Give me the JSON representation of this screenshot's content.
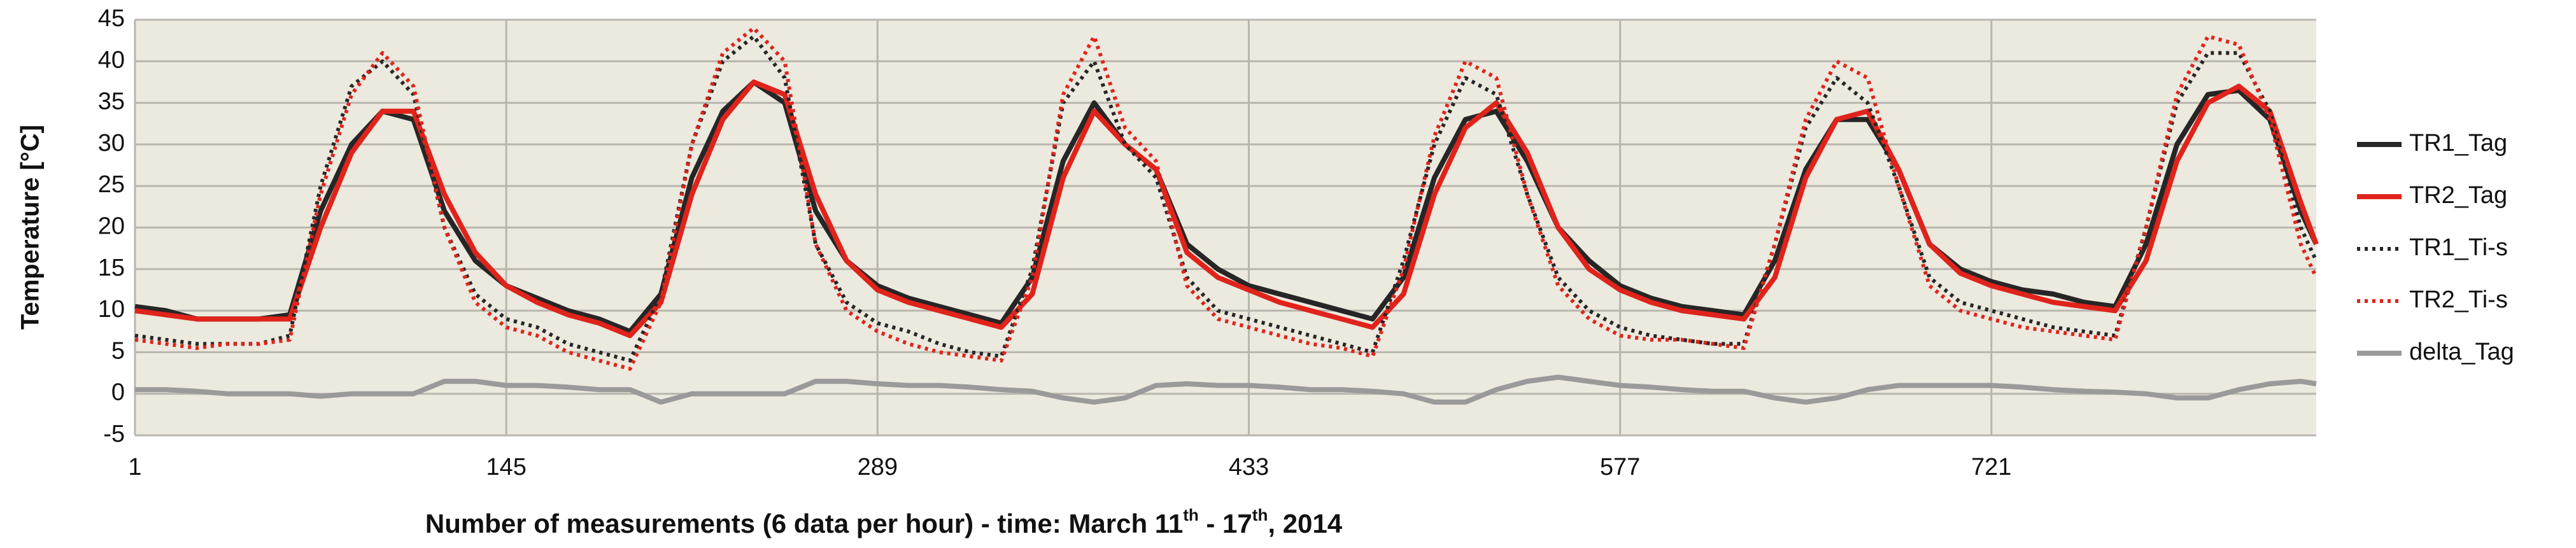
{
  "chart_data": {
    "type": "line",
    "ylabel": "Temperature   [°C]",
    "xlabel": [
      {
        "text": "Number of measurements (6 data per hour)  -  time: March 11"
      },
      {
        "text": "th",
        "sup": true
      },
      {
        "text": " - 17"
      },
      {
        "text": "th",
        "sup": true
      },
      {
        "text": ", 2014"
      }
    ],
    "xlim": [
      1,
      847
    ],
    "xticks": [
      1,
      145,
      289,
      433,
      577,
      721
    ],
    "ylim": [
      -5,
      45
    ],
    "yticks": [
      -5,
      0,
      5,
      10,
      15,
      20,
      25,
      30,
      35,
      40,
      45
    ],
    "grid": true,
    "legend": "right",
    "x": [
      1,
      13,
      25,
      37,
      49,
      61,
      73,
      85,
      97,
      109,
      121,
      133,
      145,
      157,
      169,
      181,
      193,
      205,
      217,
      229,
      241,
      253,
      265,
      277,
      289,
      301,
      313,
      325,
      337,
      349,
      361,
      373,
      385,
      397,
      409,
      421,
      433,
      445,
      457,
      469,
      481,
      493,
      505,
      517,
      529,
      541,
      553,
      565,
      577,
      589,
      601,
      613,
      625,
      637,
      649,
      661,
      673,
      685,
      697,
      709,
      721,
      733,
      745,
      757,
      769,
      781,
      793,
      805,
      817,
      829,
      841,
      847
    ],
    "series": [
      {
        "name": "TR1_Tag",
        "color": "#262626",
        "style": "solid",
        "values": [
          10.5,
          10,
          9,
          9,
          9,
          9.5,
          22,
          30,
          34,
          33,
          22,
          16,
          13,
          11.5,
          10,
          9,
          7.5,
          12,
          26,
          34,
          37.5,
          35,
          22,
          16,
          13,
          11.5,
          10.5,
          9.5,
          8.5,
          14,
          28,
          35,
          30,
          27,
          18,
          15,
          13,
          12,
          11,
          10,
          9,
          14,
          26,
          33,
          34,
          28,
          20,
          16,
          13,
          11.5,
          10.5,
          10,
          9.5,
          16,
          27,
          33,
          33,
          27,
          18,
          15,
          13.5,
          12.5,
          12,
          11,
          10.5,
          18,
          30,
          36,
          36.5,
          33,
          22,
          18
        ]
      },
      {
        "name": "TR2_Tag",
        "color": "#e0231b",
        "style": "solid",
        "values": [
          10,
          9.5,
          9,
          9,
          9,
          9,
          20,
          29,
          34,
          34,
          24,
          17,
          13,
          11,
          9.5,
          8.5,
          7,
          11,
          24,
          33,
          37.5,
          36,
          24,
          16,
          12.5,
          11,
          10,
          9,
          8,
          12,
          26,
          34,
          30,
          27,
          17,
          14,
          12.5,
          11,
          10,
          9,
          8,
          12,
          24,
          32,
          35,
          29,
          20,
          15,
          12.5,
          11,
          10,
          9.5,
          9,
          14,
          26,
          33,
          34,
          27,
          18,
          14.5,
          13,
          12,
          11,
          10.5,
          10,
          16,
          28,
          35,
          37,
          34,
          23,
          18
        ]
      },
      {
        "name": "TR1_Ti-s",
        "color": "#262626",
        "style": "dotted",
        "values": [
          7,
          6.5,
          6,
          6,
          6,
          7,
          25,
          37,
          40,
          36,
          20,
          12,
          9,
          8,
          6,
          5,
          4,
          12,
          30,
          40,
          43,
          38,
          18,
          11,
          8.5,
          7.5,
          6,
          5,
          4.5,
          15,
          35,
          40,
          30,
          26,
          14,
          10,
          9,
          8,
          7,
          6,
          5,
          16,
          30,
          38,
          36,
          24,
          14,
          10,
          8,
          7,
          6.5,
          6,
          6,
          18,
          32,
          38,
          35,
          25,
          14,
          11,
          10,
          9,
          8,
          7.5,
          7,
          20,
          35,
          41,
          41,
          34,
          20,
          16
        ]
      },
      {
        "name": "TR2_Ti-s",
        "color": "#e0231b",
        "style": "dotted",
        "values": [
          6.5,
          6,
          5.5,
          6,
          6,
          6.5,
          24,
          36,
          41,
          37,
          20,
          11,
          8,
          7,
          5,
          4,
          3,
          11,
          30,
          41,
          44,
          40,
          18,
          10,
          7.5,
          6,
          5,
          4.5,
          4,
          14,
          36,
          43,
          32,
          28,
          13,
          9,
          8,
          7,
          6,
          5.5,
          4.5,
          15,
          31,
          40,
          38,
          24,
          13,
          9,
          7,
          6.5,
          6.5,
          6,
          5.5,
          18,
          33,
          40,
          38,
          25,
          13,
          10,
          9,
          8,
          7.5,
          7,
          6.5,
          20,
          36,
          43,
          42,
          33,
          18,
          14
        ]
      },
      {
        "name": "delta_Tag",
        "color": "#9a9a9a",
        "style": "solid",
        "values": [
          0.5,
          0.5,
          0.3,
          0,
          0,
          0,
          -0.3,
          0,
          0,
          0,
          1.5,
          1.5,
          1,
          1,
          0.8,
          0.5,
          0.5,
          -1,
          0,
          0,
          0,
          0,
          1.5,
          1.5,
          1.2,
          1,
          1,
          0.8,
          0.5,
          0.3,
          -0.5,
          -1,
          -0.5,
          1,
          1.2,
          1,
          1,
          0.8,
          0.5,
          0.5,
          0.3,
          0,
          -1,
          -1,
          0.5,
          1.5,
          2,
          1.5,
          1,
          0.8,
          0.5,
          0.3,
          0.3,
          -0.5,
          -1,
          -0.5,
          0.5,
          1,
          1,
          1,
          1,
          0.8,
          0.5,
          0.3,
          0.2,
          0,
          -0.5,
          -0.5,
          0.5,
          1.2,
          1.5,
          1.2
        ]
      }
    ]
  }
}
